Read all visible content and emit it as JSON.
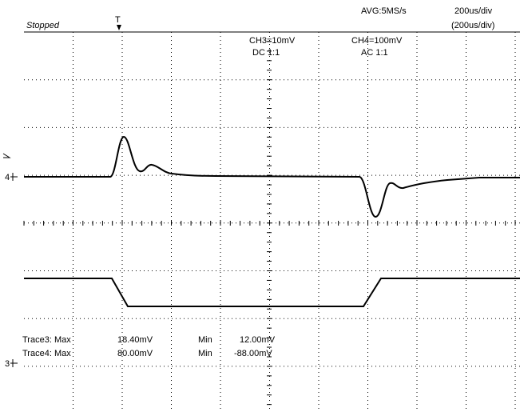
{
  "header": {
    "status": "Stopped",
    "sample_rate": "AVG:5MS/s",
    "timebase": "200us/div",
    "timebase_window": "(200us/div)"
  },
  "channels": [
    {
      "scale": "CH3=10mV",
      "coupling": "DC  1:1"
    },
    {
      "scale": "CH4=100mV",
      "coupling": "AC  1:1"
    }
  ],
  "markers": {
    "trigger": "T",
    "ch4": "4",
    "ch3": "3"
  },
  "measurements": [
    {
      "label": "Trace3: Max",
      "max": "18.40mV",
      "min_label": "Min",
      "min": "12.00mV"
    },
    {
      "label": "Trace4: Max",
      "max": "80.00mV",
      "min_label": "Min",
      "min": "-88.00mV"
    }
  ]
}
